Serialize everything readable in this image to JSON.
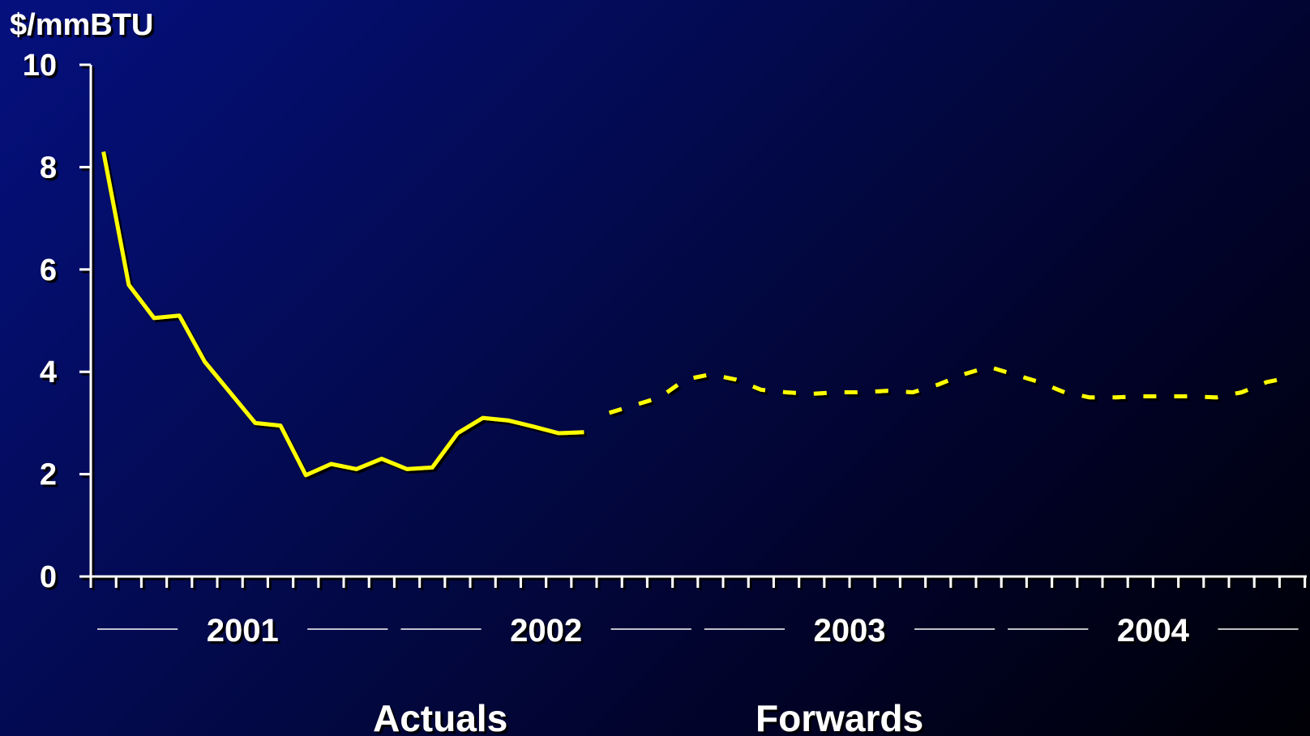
{
  "chart_data": {
    "type": "line",
    "ylabel": "$/mmBTU",
    "ylim": [
      0,
      10
    ],
    "yticks": [
      "0",
      "2",
      "4",
      "6",
      "8",
      "10"
    ],
    "year_labels": [
      "2001",
      "2002",
      "2003",
      "2004"
    ],
    "months_per_year": 12,
    "x_unit": "month index from Jan 2001",
    "series": [
      {
        "name": "Actuals",
        "style": "solid",
        "color": "#ffff00",
        "x": [
          1,
          2,
          3,
          4,
          5,
          6,
          7,
          8,
          9,
          10,
          11,
          12,
          13,
          14,
          15,
          16,
          17,
          18,
          19,
          20
        ],
        "values": [
          8.3,
          5.7,
          5.05,
          5.1,
          4.2,
          3.6,
          3.0,
          2.95,
          1.98,
          2.2,
          2.1,
          2.3,
          2.1,
          2.13,
          2.8,
          3.1,
          3.05,
          2.93,
          2.8,
          2.82
        ]
      },
      {
        "name": "Forwards",
        "style": "dashed",
        "color": "#ffff00",
        "x": [
          21,
          22,
          23,
          24,
          25,
          26,
          27,
          28,
          29,
          30,
          31,
          32,
          33,
          34,
          35,
          36,
          37,
          38,
          39,
          40,
          41,
          42,
          43,
          44,
          45,
          46,
          47,
          48
        ],
        "values": [
          3.2,
          3.35,
          3.5,
          3.85,
          3.95,
          3.85,
          3.65,
          3.6,
          3.57,
          3.6,
          3.6,
          3.63,
          3.6,
          3.75,
          3.95,
          4.1,
          3.95,
          3.8,
          3.6,
          3.5,
          3.5,
          3.52,
          3.52,
          3.52,
          3.5,
          3.6,
          3.8,
          3.9
        ]
      }
    ],
    "legend": {
      "placement": "bottom",
      "items": [
        "Actuals",
        "Forwards"
      ]
    }
  }
}
